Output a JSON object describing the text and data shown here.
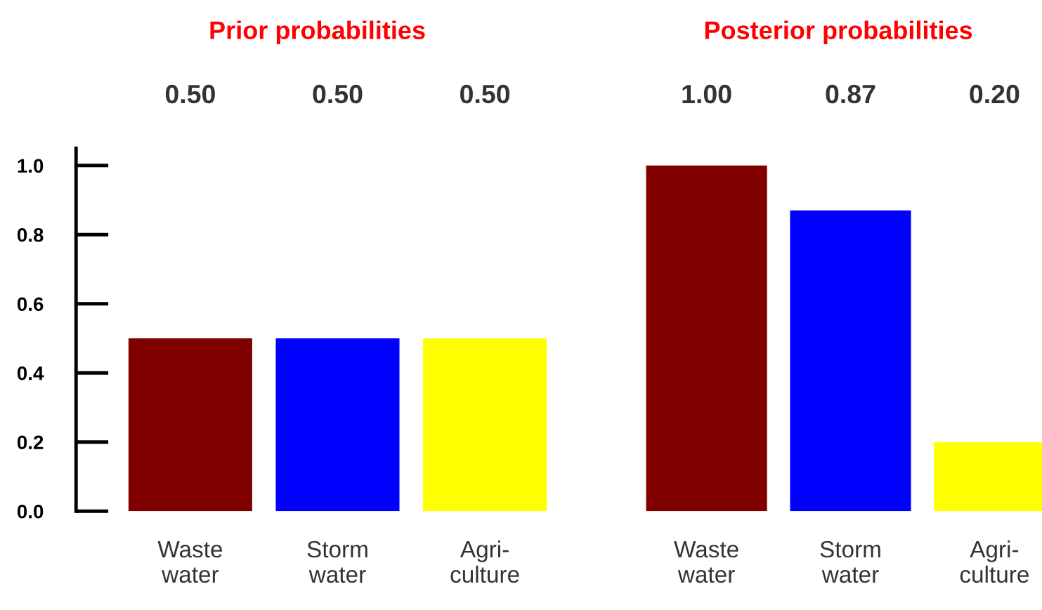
{
  "chart_data": [
    {
      "type": "bar",
      "title": "Prior probabilities",
      "categories": [
        "Waste\nwater",
        "Storm\nwater",
        "Agri-\nculture"
      ],
      "values": [
        0.5,
        0.5,
        0.5
      ],
      "colors": [
        "#800000",
        "#0000ff",
        "#ffff00"
      ],
      "value_labels": [
        "0.50",
        "0.50",
        "0.50"
      ],
      "ylim": [
        0,
        1.05
      ],
      "yticks": [
        {
          "value": 0,
          "label": "0.0"
        },
        {
          "value": 0.2,
          "label": "0.2"
        },
        {
          "value": 0.4,
          "label": "0.4"
        },
        {
          "value": 0.6,
          "label": "0.6"
        },
        {
          "value": 0.8,
          "label": "0.8"
        },
        {
          "value": 1,
          "label": "1.0"
        }
      ],
      "grid": false,
      "legend": false
    },
    {
      "type": "bar",
      "title": "Posterior probabilities",
      "categories": [
        "Waste\nwater",
        "Storm\nwater",
        "Agri-\nculture"
      ],
      "values": [
        1.0,
        0.87,
        0.2
      ],
      "colors": [
        "#800000",
        "#0000ff",
        "#ffff00"
      ],
      "value_labels": [
        "1.00",
        "0.87",
        "0.20"
      ],
      "tick_labels": "x",
      "grid": false,
      "legend": false
    }
  ]
}
